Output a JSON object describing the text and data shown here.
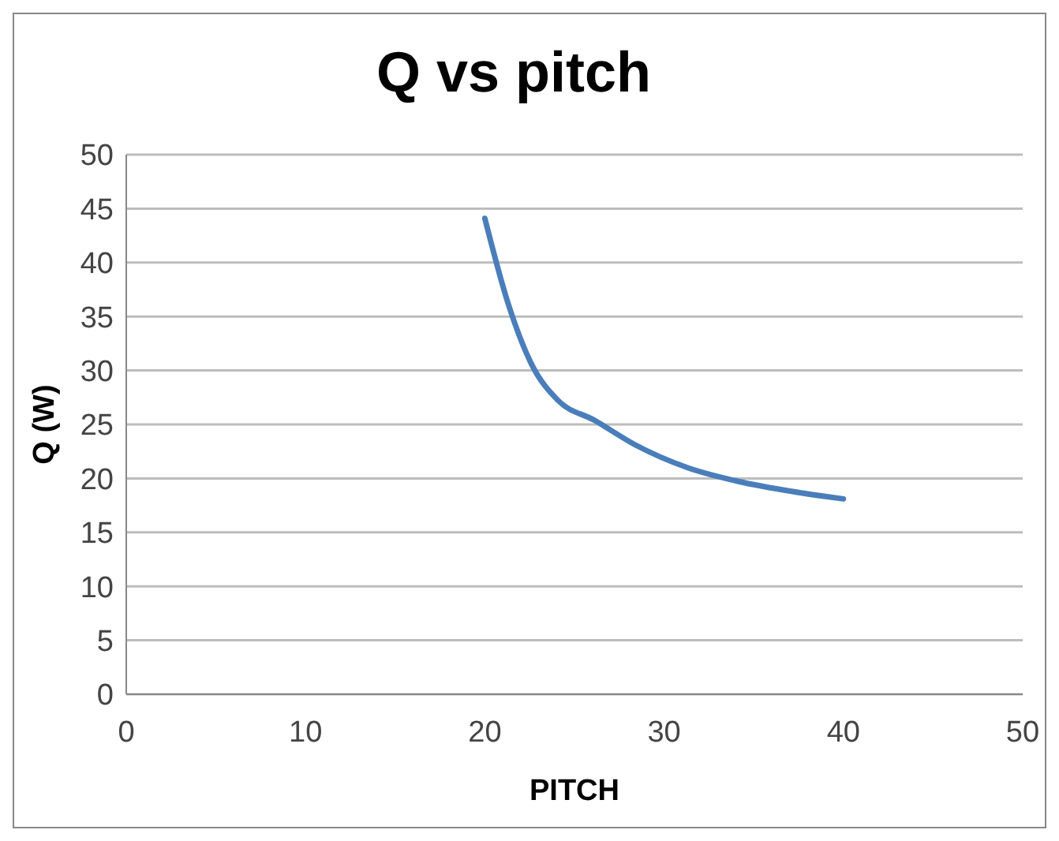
{
  "chart_data": {
    "type": "line",
    "title": "Q vs pitch",
    "xlabel": "PITCH",
    "ylabel": "Q (W)",
    "x": [
      20,
      21.3,
      22.6,
      24.1,
      26.1,
      28.4,
      31.3,
      34.2,
      37.1,
      40
    ],
    "series": [
      {
        "color": "#4a7ebb",
        "values": [
          44.1,
          36.2,
          30.6,
          27.2,
          25.4,
          23.1,
          21.0,
          19.7,
          18.8,
          18.1
        ]
      }
    ],
    "xlim": [
      0,
      50
    ],
    "xticks": [
      0,
      10,
      20,
      30,
      40,
      50
    ],
    "ylim": [
      0,
      50
    ],
    "yticks": [
      0,
      5,
      10,
      15,
      20,
      25,
      30,
      35,
      40,
      45,
      50
    ],
    "grid": "y",
    "marker": "none",
    "line_style": "solid"
  }
}
